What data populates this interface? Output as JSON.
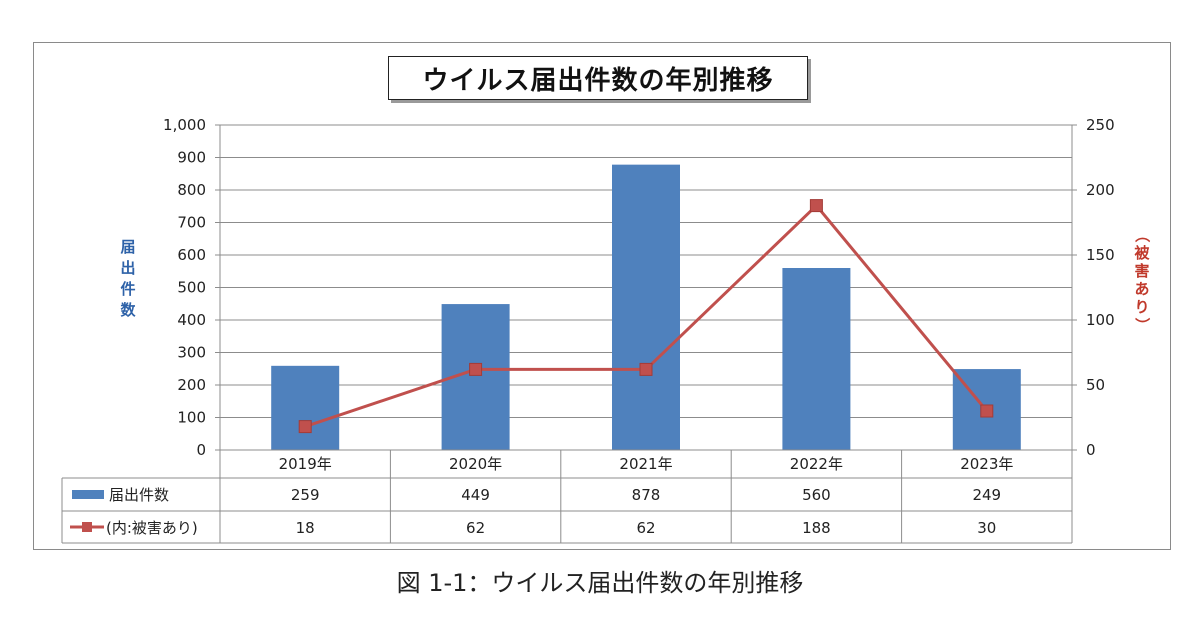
{
  "chart_data": {
    "type": "bar",
    "title": "ウイルス届出件数の年別推移",
    "categories": [
      "2019年",
      "2020年",
      "2021年",
      "2022年",
      "2023年"
    ],
    "series": [
      {
        "name": "届出件数",
        "type": "bar",
        "axis": "left",
        "color": "#4f81bd",
        "values": [
          259,
          449,
          878,
          560,
          249
        ]
      },
      {
        "name": "(内:被害あり)",
        "type": "line",
        "axis": "right",
        "color": "#c0504d",
        "values": [
          18,
          62,
          62,
          188,
          30
        ]
      }
    ],
    "ylabel_left": "届出件数",
    "ylabel_right": "（被害あり）",
    "ylim_left": [
      0,
      1000
    ],
    "ylim_right": [
      0,
      250
    ],
    "yticks_left": [
      "0",
      "100",
      "200",
      "300",
      "400",
      "500",
      "600",
      "700",
      "800",
      "900",
      "1,000"
    ],
    "yticks_right": [
      "0",
      "50",
      "100",
      "150",
      "200",
      "250"
    ],
    "grid": true,
    "data_table": true
  },
  "caption": "図 1-1：ウイルス届出件数の年別推移"
}
